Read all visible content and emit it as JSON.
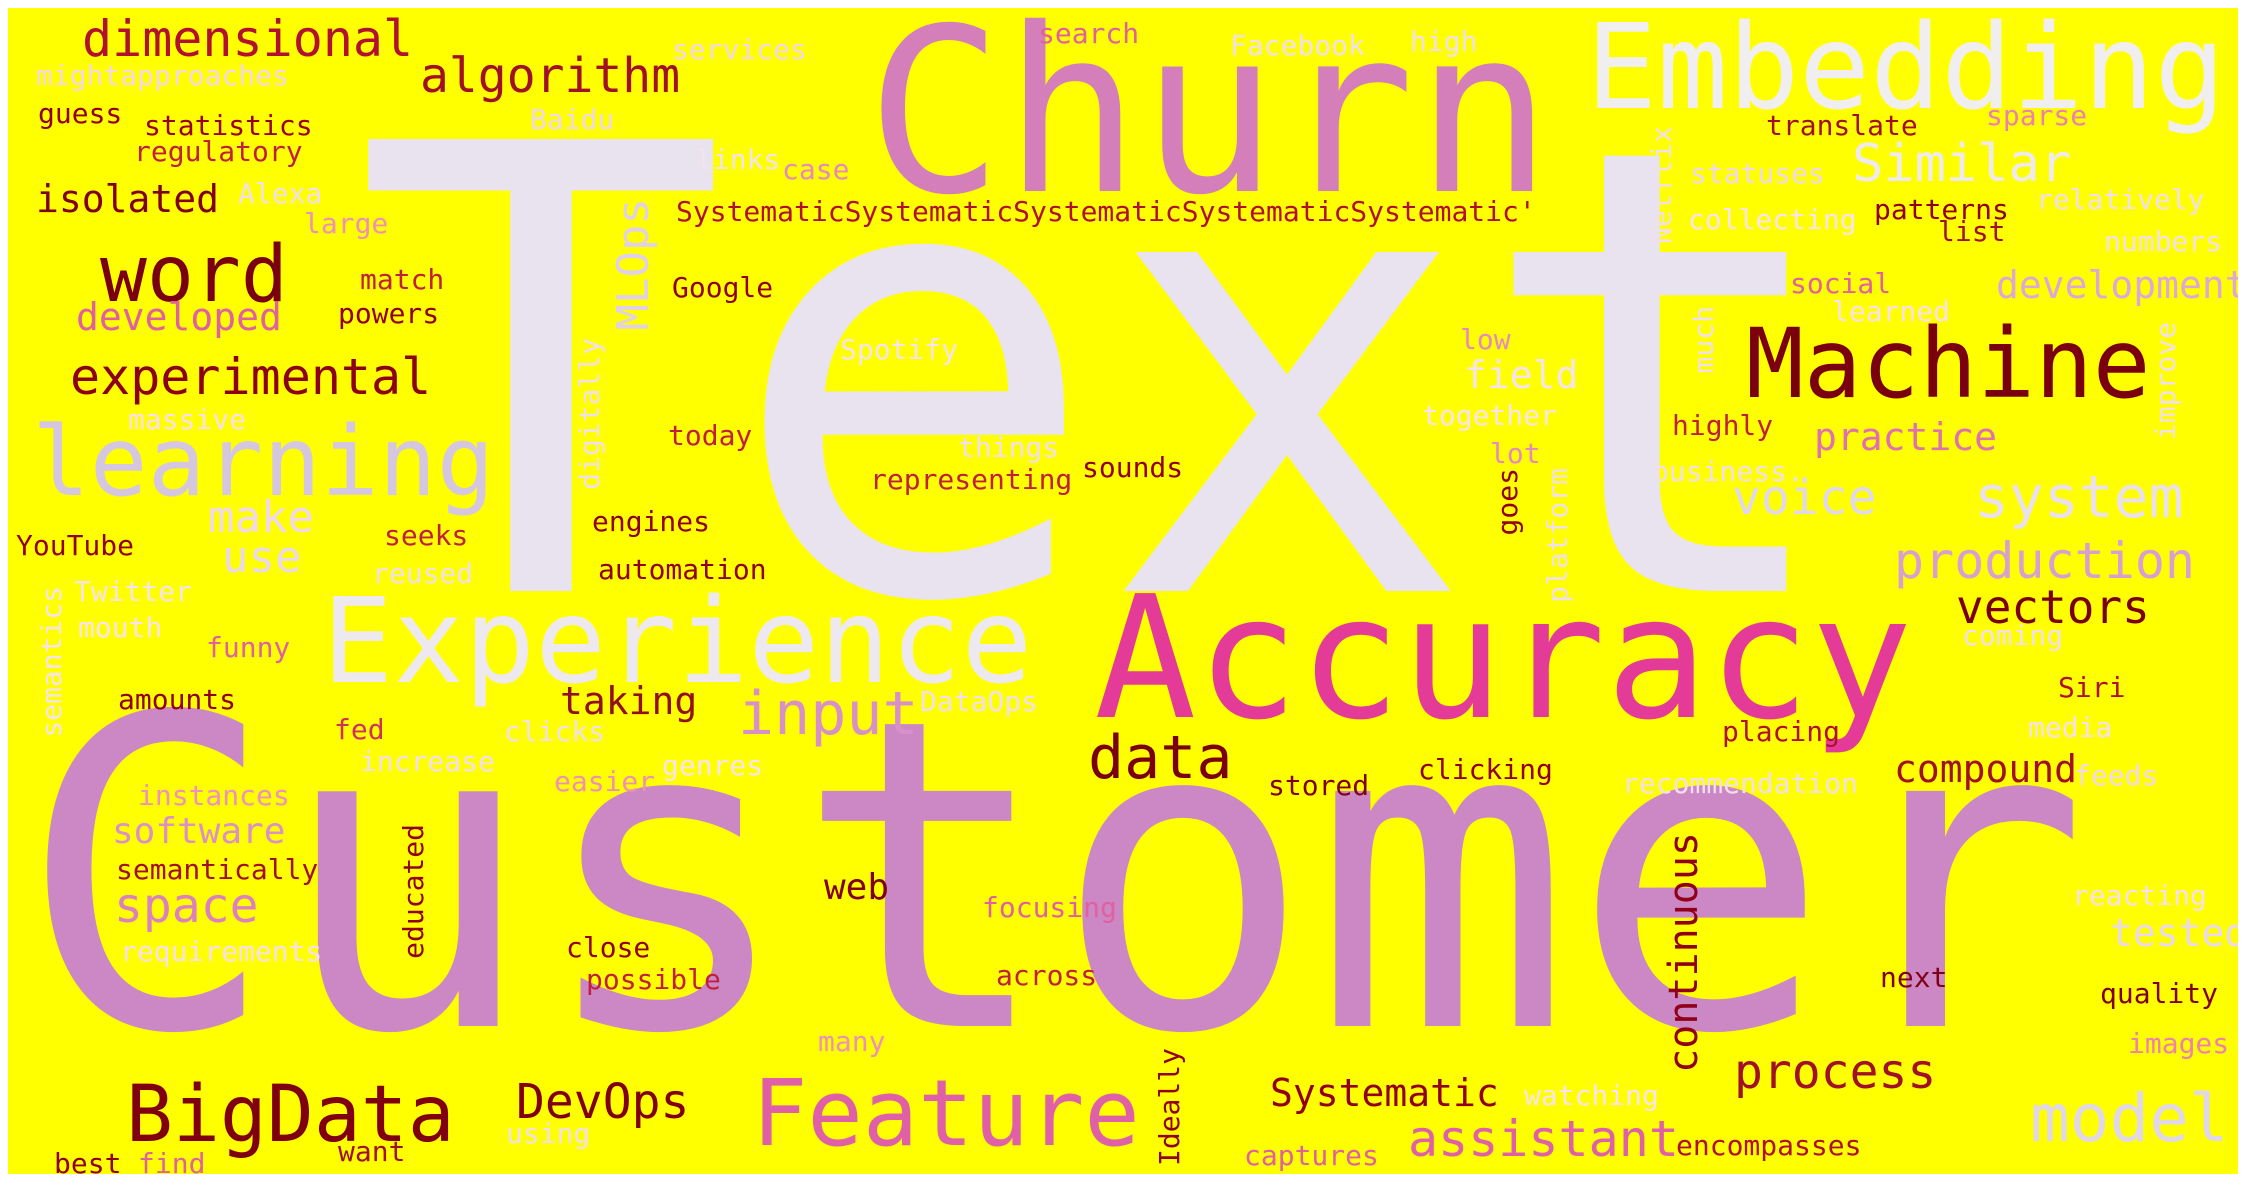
{
  "background": "#ffff00",
  "palette": {
    "lavender": "#e8e3ef",
    "light_lavender": "#ece8ee",
    "orchid": "#cc88c4",
    "pink": "#d97ab5",
    "hot_pink": "#e8399b",
    "light_pink": "#f2c4d8",
    "dark_red": "#800000",
    "red": "#d01040"
  },
  "words": [
    {
      "id": "text",
      "text": "Text",
      "color": "#e8e3ef"
    },
    {
      "id": "customer",
      "text": "Customer",
      "color": "#cc88c4"
    },
    {
      "id": "churn",
      "text": "Churn",
      "color": "#d57fba"
    },
    {
      "id": "accuracy",
      "text": "Accuracy",
      "color": "#e43a98"
    },
    {
      "id": "embedding",
      "text": "Embedding",
      "color": "#f1eef0"
    },
    {
      "id": "experience",
      "text": "Experience",
      "color": "#ede9ee"
    },
    {
      "id": "machine",
      "text": "Machine",
      "color": "#7a0010"
    },
    {
      "id": "learning",
      "text": "learning",
      "color": "#d5c7e0"
    },
    {
      "id": "feature",
      "text": "Feature",
      "color": "#e060a8"
    },
    {
      "id": "bigdata",
      "text": "BigData",
      "color": "#800010"
    },
    {
      "id": "model",
      "text": "model",
      "color": "#e0d8e8"
    },
    {
      "id": "word",
      "text": "word",
      "color": "#7a0010"
    },
    {
      "id": "data",
      "text": "data",
      "color": "#7a0010"
    },
    {
      "id": "input",
      "text": "input",
      "color": "#d890c8"
    },
    {
      "id": "dimensional",
      "text": "dimensional",
      "color": "#b21030"
    },
    {
      "id": "algorithm",
      "text": "algorithm",
      "color": "#a01028"
    },
    {
      "id": "experimental",
      "text": "experimental",
      "color": "#8c0018"
    },
    {
      "id": "system",
      "text": "system",
      "color": "#eae0ee"
    },
    {
      "id": "production",
      "text": "production",
      "color": "#d8a0d0"
    },
    {
      "id": "process",
      "text": "process",
      "color": "#a01028"
    },
    {
      "id": "assistant",
      "text": "assistant",
      "color": "#e060a8"
    },
    {
      "id": "vectors",
      "text": "vectors",
      "color": "#7a0010"
    },
    {
      "id": "voice",
      "text": "voice",
      "color": "#e0d8ee"
    },
    {
      "id": "similar",
      "text": "Similar",
      "color": "#efeaf0"
    },
    {
      "id": "make",
      "text": "make",
      "color": "#f0d8ee"
    },
    {
      "id": "use",
      "text": "use",
      "color": "#ead8ee"
    },
    {
      "id": "space",
      "text": "space",
      "color": "#dd80c0"
    },
    {
      "id": "devops",
      "text": "DevOps",
      "color": "#800010"
    },
    {
      "id": "systematic",
      "text": "Systematic",
      "color": "#900018"
    },
    {
      "id": "compound",
      "text": "compound",
      "color": "#a01028"
    },
    {
      "id": "practice",
      "text": "practice",
      "color": "#e070b0"
    },
    {
      "id": "development",
      "text": "development",
      "color": "#dda8d8"
    },
    {
      "id": "field",
      "text": "field",
      "color": "#f4e4f0"
    },
    {
      "id": "taking",
      "text": "taking",
      "color": "#901020"
    },
    {
      "id": "software",
      "text": "software",
      "color": "#dd90c8"
    },
    {
      "id": "developed",
      "text": "developed",
      "color": "#e060a0"
    },
    {
      "id": "isolated",
      "text": "isolated",
      "color": "#800018"
    },
    {
      "id": "web",
      "text": "web",
      "color": "#800018"
    },
    {
      "id": "tested",
      "text": "tested",
      "color": "#ead8ee"
    },
    {
      "id": "mlops",
      "text": "MLOps",
      "color": "#e0d0e8",
      "vertical": true
    },
    {
      "id": "continuous",
      "text": "continuous",
      "color": "#900018",
      "vertical": true
    },
    {
      "id": "systematic_long",
      "text": "SystematicSystematicSystematicSystematicSystematic'",
      "color": "#b01030"
    },
    {
      "id": "statistics",
      "text": "statistics",
      "color": "#9a0018"
    },
    {
      "id": "regulatory",
      "text": "regulatory",
      "color": "#c02040"
    },
    {
      "id": "guess",
      "text": "guess",
      "color": "#900018"
    },
    {
      "id": "mightapproaches",
      "text": "mightapproaches",
      "color": "#f4d8e8"
    },
    {
      "id": "services",
      "text": "services",
      "color": "#f0d8e8"
    },
    {
      "id": "search",
      "text": "search",
      "color": "#e060a0"
    },
    {
      "id": "facebook",
      "text": "Facebook",
      "color": "#f0e0ee"
    },
    {
      "id": "high",
      "text": "high",
      "color": "#f0e0ee"
    },
    {
      "id": "baidu",
      "text": "Baidu",
      "color": "#eed8ee"
    },
    {
      "id": "links",
      "text": "links",
      "color": "#f0e4ee"
    },
    {
      "id": "case",
      "text": "case",
      "color": "#e888c0"
    },
    {
      "id": "alexa",
      "text": "Alexa",
      "color": "#f0e0ee"
    },
    {
      "id": "large",
      "text": "large",
      "color": "#f090b8"
    },
    {
      "id": "match",
      "text": "match",
      "color": "#c02040"
    },
    {
      "id": "powers",
      "text": "powers",
      "color": "#900018"
    },
    {
      "id": "google",
      "text": "Google",
      "color": "#900018"
    },
    {
      "id": "spotify",
      "text": "Spotify",
      "color": "#f4e4f0"
    },
    {
      "id": "translate",
      "text": "translate",
      "color": "#a01028"
    },
    {
      "id": "sparse",
      "text": "sparse",
      "color": "#ee80b0"
    },
    {
      "id": "statuses",
      "text": "statuses",
      "color": "#eed8ee"
    },
    {
      "id": "patterns",
      "text": "patterns",
      "color": "#900018"
    },
    {
      "id": "list",
      "text": "list",
      "color": "#a01028"
    },
    {
      "id": "relatively",
      "text": "relatively",
      "color": "#f0e0ee"
    },
    {
      "id": "numbers",
      "text": "numbers",
      "color": "#f0e0ee"
    },
    {
      "id": "collecting",
      "text": "collecting",
      "color": "#f8e4f0"
    },
    {
      "id": "netflix",
      "text": "Netflix",
      "color": "#f0e0ee",
      "vertical": true
    },
    {
      "id": "social",
      "text": "social",
      "color": "#e060a0"
    },
    {
      "id": "learned",
      "text": "learned",
      "color": "#f8e0ee"
    },
    {
      "id": "much",
      "text": "much",
      "color": "#f0e0ee",
      "vertical": true
    },
    {
      "id": "improve",
      "text": "improve",
      "color": "#f0e0ee",
      "vertical": true
    },
    {
      "id": "low",
      "text": "low",
      "color": "#e888c0"
    },
    {
      "id": "together",
      "text": "together",
      "color": "#f8e4f0"
    },
    {
      "id": "highly",
      "text": "highly",
      "color": "#c02040"
    },
    {
      "id": "business",
      "text": "business.",
      "color": "#f0e0ee"
    },
    {
      "id": "lot",
      "text": "lot",
      "color": "#e888c0"
    },
    {
      "id": "goes",
      "text": "goes",
      "color": "#900018",
      "vertical": true
    },
    {
      "id": "platform",
      "text": "platform",
      "color": "#f0e0ee",
      "vertical": true
    },
    {
      "id": "massive",
      "text": "massive",
      "color": "#f8e0ee"
    },
    {
      "id": "today",
      "text": "today",
      "color": "#c02040"
    },
    {
      "id": "things",
      "text": "things",
      "color": "#f0e0ee"
    },
    {
      "id": "representing",
      "text": "representing",
      "color": "#c02040"
    },
    {
      "id": "sounds",
      "text": "sounds",
      "color": "#900018"
    },
    {
      "id": "digitally",
      "text": "digitally",
      "color": "#f0e0ee",
      "vertical": true
    },
    {
      "id": "engines",
      "text": "engines",
      "color": "#900018"
    },
    {
      "id": "youtube",
      "text": "YouTube",
      "color": "#900018"
    },
    {
      "id": "seeks",
      "text": "seeks",
      "color": "#c02040"
    },
    {
      "id": "twitter",
      "text": "Twitter",
      "color": "#f4e4f0"
    },
    {
      "id": "reused",
      "text": "reused",
      "color": "#f0e0ee"
    },
    {
      "id": "automation",
      "text": "automation",
      "color": "#900018"
    },
    {
      "id": "mouth",
      "text": "mouth",
      "color": "#f8e4f0"
    },
    {
      "id": "funny",
      "text": "funny",
      "color": "#e060a0"
    },
    {
      "id": "semantics",
      "text": "semantics",
      "color": "#f4e4f0",
      "vertical": true
    },
    {
      "id": "coming",
      "text": "coming",
      "color": "#f0e0ee"
    },
    {
      "id": "siri",
      "text": "Siri",
      "color": "#b01030"
    },
    {
      "id": "media",
      "text": "media",
      "color": "#f4e0ee"
    },
    {
      "id": "amounts",
      "text": "amounts",
      "color": "#900018"
    },
    {
      "id": "fed",
      "text": "fed",
      "color": "#d03060"
    },
    {
      "id": "clicks",
      "text": "clicks",
      "color": "#f0e0ee"
    },
    {
      "id": "dataops",
      "text": "DataOps",
      "color": "#f0e0ee"
    },
    {
      "id": "placing",
      "text": "placing",
      "color": "#b01030"
    },
    {
      "id": "increase",
      "text": "increase",
      "color": "#f0e0ee"
    },
    {
      "id": "easier",
      "text": "easier",
      "color": "#f090b8"
    },
    {
      "id": "genres",
      "text": "genres",
      "color": "#f8e4f0"
    },
    {
      "id": "stored",
      "text": "stored",
      "color": "#800018"
    },
    {
      "id": "clicking",
      "text": "clicking",
      "color": "#900018"
    },
    {
      "id": "recommendation",
      "text": "recommendation",
      "color": "#f0e0ee"
    },
    {
      "id": "feeds",
      "text": "feeds",
      "color": "#f0d8ee"
    },
    {
      "id": "instances",
      "text": "instances",
      "color": "#f090c0"
    },
    {
      "id": "semantically",
      "text": "semantically",
      "color": "#a01028"
    },
    {
      "id": "educated",
      "text": "educated",
      "color": "#900018",
      "vertical": true
    },
    {
      "id": "requirements",
      "text": "requirements",
      "color": "#f4e0ee"
    },
    {
      "id": "focusing",
      "text": "focusing",
      "color": "#e060a0"
    },
    {
      "id": "reacting",
      "text": "reacting",
      "color": "#f4e0ee"
    },
    {
      "id": "close",
      "text": "close",
      "color": "#900018"
    },
    {
      "id": "possible",
      "text": "possible",
      "color": "#c02040"
    },
    {
      "id": "across",
      "text": "across",
      "color": "#c02040"
    },
    {
      "id": "next",
      "text": "next",
      "color": "#800018"
    },
    {
      "id": "quality",
      "text": "quality",
      "color": "#800018"
    },
    {
      "id": "many",
      "text": "many",
      "color": "#f090b8"
    },
    {
      "id": "images",
      "text": "images",
      "color": "#f080b0"
    },
    {
      "id": "ideally",
      "text": "Ideally",
      "color": "#900018",
      "vertical": true
    },
    {
      "id": "watching",
      "text": "watching",
      "color": "#f8e4f0"
    },
    {
      "id": "using",
      "text": "using",
      "color": "#f0e0ee"
    },
    {
      "id": "want",
      "text": "want",
      "color": "#a01028"
    },
    {
      "id": "best",
      "text": "best",
      "color": "#900018"
    },
    {
      "id": "find",
      "text": "find",
      "color": "#e060a0"
    },
    {
      "id": "captures",
      "text": "captures",
      "color": "#e060a0"
    },
    {
      "id": "encompasses",
      "text": "encompasses",
      "color": "#b01030"
    }
  ]
}
